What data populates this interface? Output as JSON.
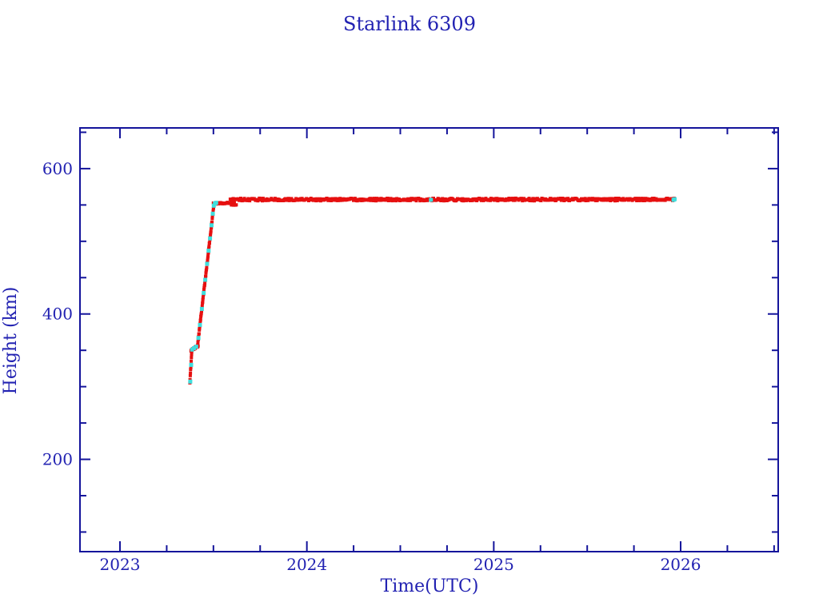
{
  "title": "Starlink 6309",
  "colors": {
    "background": "#ffffff",
    "axis_line": "#14149b",
    "label_text": "#2222b2",
    "series_primary_red": "#e61010",
    "series_secondary_cyan": "#3fdedd"
  },
  "chart_data": {
    "type": "scatter",
    "title": "Starlink 6309",
    "xlabel": "Time(UTC)",
    "ylabel": "Height (km)",
    "xlim": [
      2022.786,
      2026.522
    ],
    "ylim": [
      73,
      656
    ],
    "grid": false,
    "legend": "none",
    "x_major_ticks": [
      2023,
      2024,
      2025,
      2026
    ],
    "x_tick_labels": [
      "2023",
      "2024",
      "2025",
      "2026"
    ],
    "x_minor_step": 0.25,
    "y_major_ticks": [
      200,
      400,
      600
    ],
    "y_tick_labels": [
      "200",
      "400",
      "600"
    ],
    "y_minor_step": 50,
    "series": [
      {
        "name": "height-track-red",
        "color": "#e61010",
        "marker_px": 4,
        "description": "satellite height vs time; launch ~2023.37 at ~306 km, raise to ~553 km by 2023.5, small hold, then station ~557 km until ~2025.97",
        "segments": [
          [
            2023.374,
            306,
            2023.384,
            348,
            0.001,
            1.0
          ],
          [
            2023.38,
            350,
            2023.418,
            356,
            0.0015,
            1.0
          ],
          [
            2023.416,
            358,
            2023.502,
            549,
            0.0012,
            1.5
          ],
          [
            2023.5,
            552,
            2023.612,
            553,
            0.0025,
            1.0
          ],
          [
            2023.596,
            550,
            2023.622,
            550,
            0.004,
            0.6
          ],
          [
            2023.59,
            557.5,
            2025.965,
            557.5,
            0.004,
            1.8
          ]
        ],
        "points": []
      },
      {
        "name": "height-track-cyan",
        "color": "#3fdedd",
        "marker_px": 5,
        "description": "sparse secondary track points visible under/over the red track",
        "segments": [],
        "points": [
          [
            2023.376,
            307
          ],
          [
            2023.381,
            330
          ],
          [
            2023.386,
            351
          ],
          [
            2023.396,
            353
          ],
          [
            2023.408,
            355
          ],
          [
            2023.42,
            367
          ],
          [
            2023.428,
            385
          ],
          [
            2023.438,
            407
          ],
          [
            2023.448,
            429
          ],
          [
            2023.456,
            447
          ],
          [
            2023.466,
            469
          ],
          [
            2023.474,
            487
          ],
          [
            2023.482,
            504
          ],
          [
            2023.49,
            522
          ],
          [
            2023.497,
            538
          ],
          [
            2023.502,
            549
          ],
          [
            2023.508,
            552
          ],
          [
            2023.515,
            553
          ],
          [
            2024.664,
            557
          ],
          [
            2025.962,
            557
          ],
          [
            2025.968,
            558
          ]
        ]
      }
    ]
  }
}
